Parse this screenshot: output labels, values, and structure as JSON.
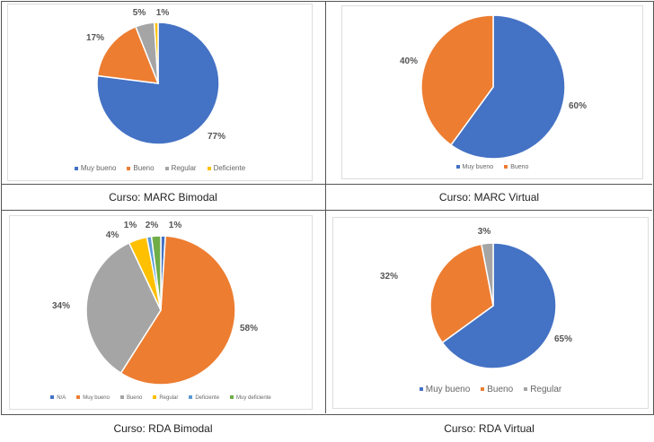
{
  "chart_data": [
    {
      "type": "pie",
      "title": "Curso: MARC Bimodal",
      "categories": [
        "Muy bueno",
        "Bueno",
        "Regular",
        "Deficiente"
      ],
      "values": [
        77,
        17,
        5,
        1
      ],
      "labels": [
        "77%",
        "17%",
        "5%",
        "1%"
      ],
      "colors": [
        "#4472C4",
        "#ED7D31",
        "#A5A5A5",
        "#FFC000"
      ],
      "legend": "bottom"
    },
    {
      "type": "pie",
      "title": "Curso: MARC Virtual",
      "categories": [
        "Muy bueno",
        "Bueno"
      ],
      "values": [
        60,
        40
      ],
      "labels": [
        "60%",
        "40%"
      ],
      "colors": [
        "#4472C4",
        "#ED7D31"
      ],
      "legend": "bottom"
    },
    {
      "type": "pie",
      "title": "Curso: RDA Bimodal",
      "categories": [
        "N/A",
        "Muy bueno",
        "Bueno",
        "Regular",
        "Deficiente",
        "Muy deficiente"
      ],
      "values": [
        1,
        58,
        34,
        4,
        1,
        2
      ],
      "labels": [
        "1%",
        "58%",
        "34%",
        "4%",
        "1%",
        "2%"
      ],
      "colors": [
        "#4472C4",
        "#ED7D31",
        "#A5A5A5",
        "#FFC000",
        "#5B9BD5",
        "#70AD47"
      ],
      "legend": "bottom"
    },
    {
      "type": "pie",
      "title": "Curso: RDA Virtual",
      "categories": [
        "Muy bueno",
        "Bueno",
        "Regular"
      ],
      "values": [
        65,
        32,
        3
      ],
      "labels": [
        "65%",
        "32%",
        "3%"
      ],
      "colors": [
        "#4472C4",
        "#ED7D31",
        "#A5A5A5"
      ],
      "legend": "bottom"
    }
  ]
}
